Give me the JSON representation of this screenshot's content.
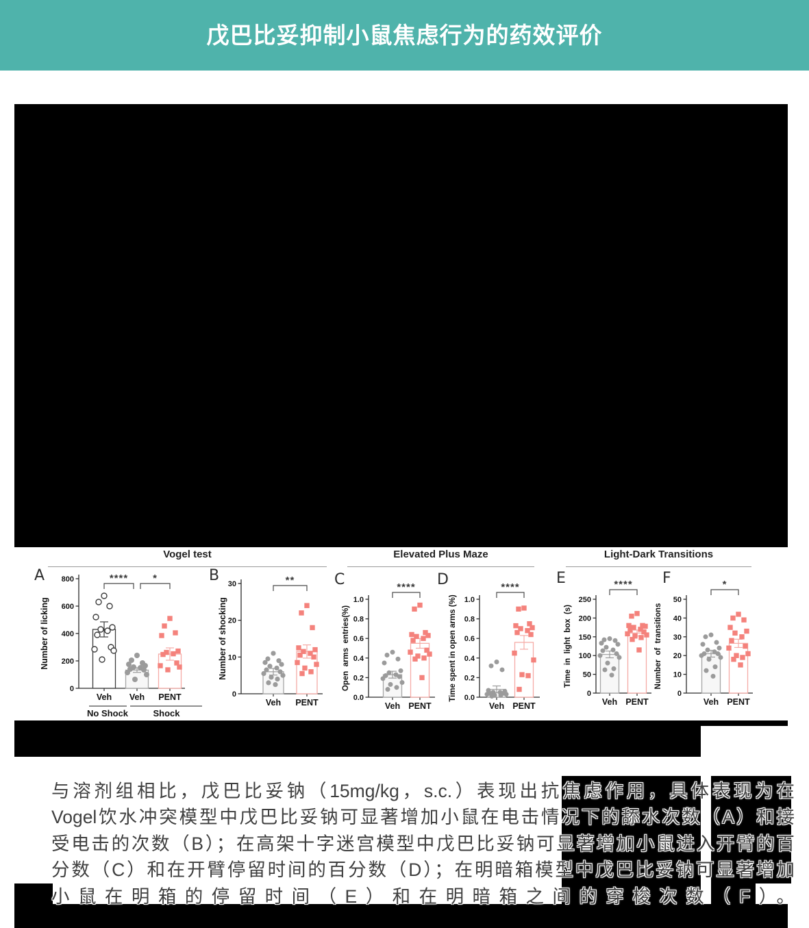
{
  "header": {
    "title": "戊巴比妥抑制小鼠焦虑行为的药效评价",
    "bg_color": "#4FB3AB",
    "text_color": "#ffffff"
  },
  "figure": {
    "sections": [
      {
        "title": "Vogel test"
      },
      {
        "title": "Elevated Plus Maze"
      },
      {
        "title": "Light-Dark Transitions"
      }
    ]
  },
  "chart_style": {
    "axis_color": "#2b2b2b",
    "sig_color": "#3a3a3a",
    "letter_color": "#2d2d2d",
    "title_underline": "#9a9a9a",
    "veh_marker": "#9b9b9b",
    "veh_bar_outline": "#a6a6a6",
    "veh_bar_fill": "#f7f7f7",
    "open_bar_outline": "#3c3c3c",
    "open_bar_fill": "#ffffff",
    "pent_marker": "#f4827c",
    "pent_bar_outline": "#f5aba6",
    "pent_bar_fill": "#ffffff"
  },
  "chart_data": [
    {
      "type": "bar",
      "panel": "A",
      "section": "Vogel test",
      "ylabel": "Number of licking",
      "ylim": [
        0,
        800
      ],
      "yticks": [
        "0",
        "200",
        "400",
        "600",
        "800"
      ],
      "categories": [
        "Veh",
        "Veh",
        "PENT"
      ],
      "group_labels": [
        {
          "label": "No Shock",
          "span": [
            0,
            0
          ]
        },
        {
          "label": "Shock",
          "span": [
            1,
            2
          ]
        }
      ],
      "series": [
        {
          "name": "Veh (No Shock)",
          "style": "open-circle",
          "mean": 430,
          "sem": 55,
          "points": [
            675,
            630,
            600,
            520,
            445,
            430,
            420,
            390,
            300,
            285,
            275,
            210
          ]
        },
        {
          "name": "Veh (Shock)",
          "style": "gray-circle",
          "mean": 133,
          "sem": 17,
          "points": [
            240,
            205,
            185,
            175,
            165,
            155,
            150,
            140,
            135,
            115,
            100,
            65
          ]
        },
        {
          "name": "PENT (Shock)",
          "style": "pink-square",
          "mean": 250,
          "sem": 45,
          "points": [
            510,
            455,
            405,
            385,
            272,
            262,
            252,
            247,
            185,
            165,
            155,
            135
          ]
        }
      ],
      "significance": [
        {
          "between": [
            0,
            1
          ],
          "label": "****"
        },
        {
          "between": [
            1,
            2
          ],
          "label": "*"
        }
      ]
    },
    {
      "type": "bar",
      "panel": "B",
      "section": "Vogel test",
      "ylabel": "Number of shocking",
      "ylim": [
        0,
        30
      ],
      "yticks": [
        "0",
        "10",
        "20",
        "30"
      ],
      "categories": [
        "Veh",
        "PENT"
      ],
      "series": [
        {
          "name": "Veh",
          "style": "gray-circle",
          "mean": 6,
          "sem": 0.9,
          "points": [
            11,
            9.5,
            9,
            8.5,
            8,
            7.5,
            7,
            6.5,
            6,
            5.5,
            5,
            4.5,
            4,
            3,
            2.5
          ]
        },
        {
          "name": "PENT",
          "style": "pink-square",
          "mean": 11.5,
          "sem": 1.8,
          "points": [
            24,
            22,
            18,
            12.5,
            12,
            11.5,
            11,
            10.5,
            10,
            8.5,
            8,
            7,
            6,
            5.5
          ]
        }
      ],
      "significance": [
        {
          "between": [
            0,
            1
          ],
          "label": "**"
        }
      ]
    },
    {
      "type": "bar",
      "panel": "C",
      "section": "Elevated Plus Maze",
      "ylabel": "Open  arms  entries(%)",
      "ylim": [
        0,
        1
      ],
      "yticks": [
        "0.0",
        "0.2",
        "0.4",
        "0.6",
        "0.8",
        "1.0"
      ],
      "categories": [
        "Veh",
        "PENT"
      ],
      "series": [
        {
          "name": "Veh",
          "style": "gray-circle",
          "mean": 0.23,
          "sem": 0.035,
          "points": [
            0.46,
            0.43,
            0.39,
            0.35,
            0.27,
            0.25,
            0.23,
            0.22,
            0.21,
            0.19,
            0.15,
            0.13,
            0.1,
            0.08
          ]
        },
        {
          "name": "PENT",
          "style": "pink-square",
          "mean": 0.55,
          "sem": 0.05,
          "points": [
            0.94,
            0.9,
            0.66,
            0.64,
            0.63,
            0.62,
            0.6,
            0.58,
            0.48,
            0.46,
            0.44,
            0.42,
            0.4,
            0.39,
            0.2
          ]
        }
      ],
      "significance": [
        {
          "between": [
            0,
            1
          ],
          "label": "****"
        }
      ]
    },
    {
      "type": "bar",
      "panel": "D",
      "section": "Elevated Plus Maze",
      "ylabel": "Time spent in open arms (%)",
      "ylim": [
        0,
        1
      ],
      "yticks": [
        "0.0",
        "0.2",
        "0.4",
        "0.6",
        "0.8",
        "1.0"
      ],
      "categories": [
        "Veh",
        "PENT"
      ],
      "series": [
        {
          "name": "Veh",
          "style": "gray-circle",
          "mean": 0.08,
          "sem": 0.035,
          "points": [
            0.36,
            0.32,
            0.28,
            0.07,
            0.06,
            0.05,
            0.05,
            0.04,
            0.04,
            0.03,
            0.03,
            0.02,
            0.02,
            0.01
          ]
        },
        {
          "name": "PENT",
          "style": "pink-square",
          "mean": 0.56,
          "sem": 0.07,
          "points": [
            0.91,
            0.9,
            0.75,
            0.73,
            0.71,
            0.7,
            0.68,
            0.66,
            0.64,
            0.45,
            0.38,
            0.23,
            0.22,
            0.08
          ]
        }
      ],
      "significance": [
        {
          "between": [
            0,
            1
          ],
          "label": "****"
        }
      ]
    },
    {
      "type": "bar",
      "panel": "E",
      "section": "Light-Dark Transitions",
      "ylabel": "Time  in  light  box  (s)",
      "ylim": [
        0,
        250
      ],
      "yticks": [
        "0",
        "50",
        "100",
        "150",
        "200",
        "250"
      ],
      "categories": [
        "Veh",
        "PENT"
      ],
      "series": [
        {
          "name": "Veh",
          "style": "gray-circle",
          "mean": 103,
          "sem": 9,
          "points": [
            145,
            142,
            140,
            133,
            130,
            122,
            115,
            113,
            105,
            100,
            95,
            80,
            65,
            62,
            48
          ]
        },
        {
          "name": "PENT",
          "style": "pink-square",
          "mean": 160,
          "sem": 8,
          "points": [
            212,
            205,
            180,
            180,
            178,
            175,
            170,
            168,
            163,
            158,
            155,
            152,
            148,
            143,
            115
          ]
        }
      ],
      "significance": [
        {
          "between": [
            0,
            1
          ],
          "label": "****"
        }
      ]
    },
    {
      "type": "bar",
      "panel": "F",
      "section": "Light-Dark Transitions",
      "ylabel": "Number  of  transitions",
      "ylim": [
        0,
        50
      ],
      "yticks": [
        "0",
        "10",
        "20",
        "30",
        "40",
        "50"
      ],
      "categories": [
        "Veh",
        "PENT"
      ],
      "series": [
        {
          "name": "Veh",
          "style": "gray-circle",
          "mean": 21,
          "sem": 1.8,
          "points": [
            31,
            30,
            27,
            26,
            24,
            23,
            22,
            21,
            21,
            20,
            19,
            18,
            14,
            12,
            9
          ]
        },
        {
          "name": "PENT",
          "style": "pink-square",
          "mean": 26.5,
          "sem": 2.2,
          "points": [
            42,
            40,
            39,
            35,
            33,
            32,
            30,
            28,
            25,
            24,
            21,
            20,
            19,
            18,
            15
          ]
        }
      ],
      "significance": [
        {
          "between": [
            0,
            1
          ],
          "label": "*"
        }
      ]
    }
  ],
  "caption": {
    "text_color": "#3f3f3f",
    "lines": [
      "与溶剂组相比，戊巴比妥钠（15mg/kg，s.c.）表现出抗焦虑作用，具体表现为在",
      "Vogel饮水冲突模型中戊巴比妥钠可显著增加小鼠在电击情况下的舔水次数（A）和接",
      "受电击的次数（B）；在高架十字迷宫模型中戊巴比妥钠可显著增加小鼠进入开臂的百",
      "分数（C）和在开臂停留时间的百分数（D）；在明暗箱模型中戊巴比妥钠可显著增加",
      "小鼠在明箱的停留时间（E）和在明暗箱之间的穿梭次数（F）。"
    ]
  },
  "redaction_color": "#000000"
}
